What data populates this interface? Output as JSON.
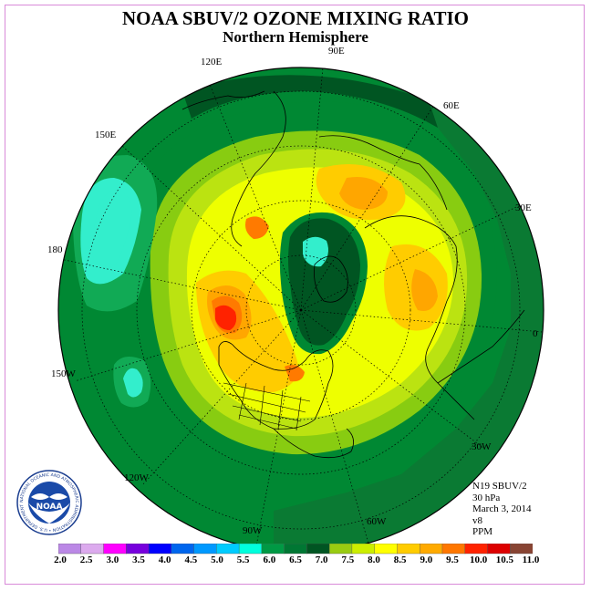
{
  "title": "NOAA SBUV/2 OZONE MIXING RATIO",
  "subtitle": "Northern Hemisphere",
  "longitude_labels": {
    "e90": "90E",
    "e120": "120E",
    "e60": "60E",
    "e150": "150E",
    "e30": "30E",
    "e180": "180",
    "zero": "0",
    "w150": "150W",
    "w30": "30W",
    "w120": "120W",
    "w60": "60W",
    "w90": "90W"
  },
  "info": {
    "satellite": "N19 SBUV/2",
    "level": "30 hPa",
    "date": "March 3, 2014",
    "version": "v8",
    "units": "PPM"
  },
  "logo": {
    "text": "NOAA",
    "ring_text": "NATIONAL OCEANIC AND ATMOSPHERIC ADMINISTRATION • U.S. DEPARTMENT OF COMMERCE •"
  },
  "colorbar": {
    "labels": [
      "2.0",
      "2.5",
      "3.0",
      "3.5",
      "4.0",
      "4.5",
      "5.0",
      "5.5",
      "6.0",
      "6.5",
      "7.0",
      "7.5",
      "8.0",
      "8.5",
      "9.0",
      "9.5",
      "10.0",
      "10.5",
      "11.0"
    ],
    "colors": [
      "#bb88e6",
      "#dcaaee",
      "#ff00ff",
      "#7700dd",
      "#0000ff",
      "#0066ee",
      "#0099ff",
      "#00ccff",
      "#00ffdd",
      "#009944",
      "#007733",
      "#005522",
      "#99cc11",
      "#ccee00",
      "#ffff00",
      "#ffcc00",
      "#ffaa00",
      "#ff7700",
      "#ff2200",
      "#dd0000",
      "#884433"
    ]
  },
  "map_colors": {
    "c55": "#33eecc",
    "c60": "#11aa55",
    "c65": "#008833",
    "c70": "#005522",
    "c75": "#88cc11",
    "c80": "#bbe311",
    "c85": "#eeff00",
    "c90": "#ffcc00",
    "c95": "#ffa600",
    "c100": "#ff7a00",
    "c105": "#ff2200"
  }
}
